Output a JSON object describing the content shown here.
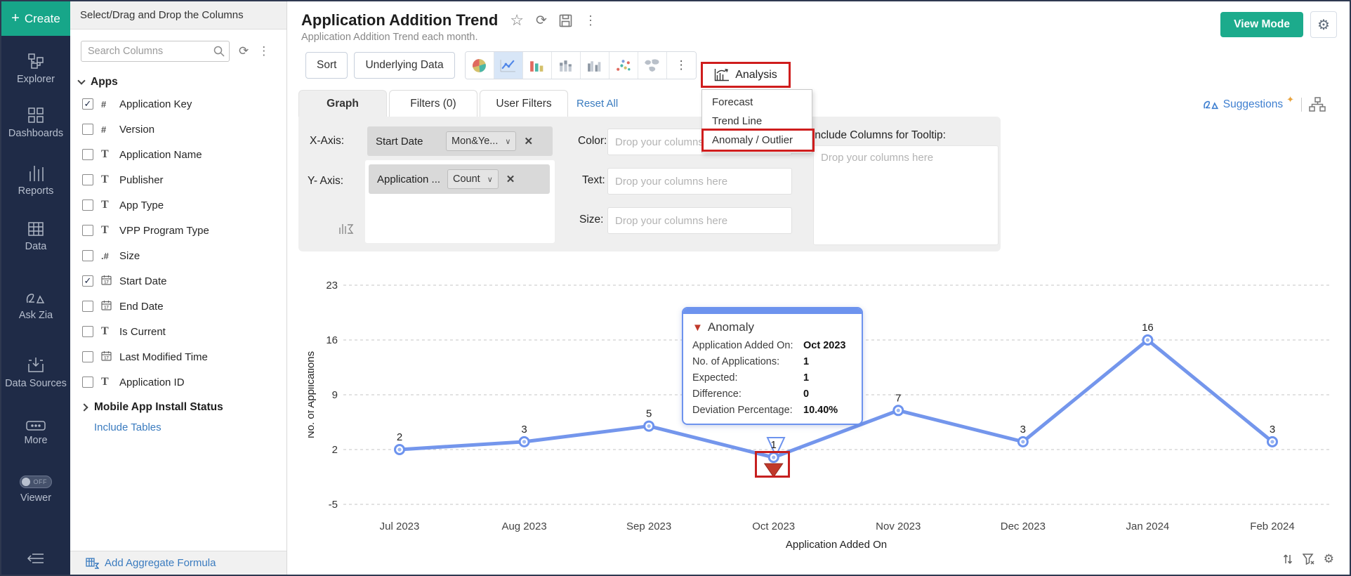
{
  "sidebar": {
    "create_label": "Create",
    "items": [
      {
        "label": "Explorer"
      },
      {
        "label": "Dashboards"
      },
      {
        "label": "Reports"
      },
      {
        "label": "Data"
      },
      {
        "label": "Ask Zia"
      },
      {
        "label": "Data Sources"
      },
      {
        "label": "More"
      },
      {
        "label": "Viewer"
      }
    ],
    "viewer_toggle": "OFF"
  },
  "columns_panel": {
    "header": "Select/Drag and Drop the Columns",
    "search_placeholder": "Search Columns",
    "section_label": "Apps",
    "fields": [
      {
        "type": "number",
        "label": "Application Key",
        "checked": true
      },
      {
        "type": "number",
        "label": "Version",
        "checked": false
      },
      {
        "type": "text",
        "label": "Application Name",
        "checked": false
      },
      {
        "type": "text",
        "label": "Publisher",
        "checked": false
      },
      {
        "type": "text",
        "label": "App Type",
        "checked": false
      },
      {
        "type": "text",
        "label": "VPP Program Type",
        "checked": false
      },
      {
        "type": "decimal",
        "label": "Size",
        "checked": false
      },
      {
        "type": "date",
        "label": "Start Date",
        "checked": true
      },
      {
        "type": "date",
        "label": "End Date",
        "checked": false
      },
      {
        "type": "text",
        "label": "Is Current",
        "checked": false
      },
      {
        "type": "date",
        "label": "Last Modified Time",
        "checked": false
      },
      {
        "type": "text",
        "label": "Application ID",
        "checked": false
      }
    ],
    "expand_item": "Mobile App Install Status",
    "include_tables_label": "Include Tables",
    "add_aggregate_label": "Add Aggregate Formula"
  },
  "report_header": {
    "title": "Application Addition Trend",
    "subtitle": "Application Addition Trend each month."
  },
  "toolbar": {
    "sort_label": "Sort",
    "underlying_data_label": "Underlying Data",
    "analysis_label": "Analysis",
    "chart_icons": [
      "pie-chart-icon",
      "line-chart-icon",
      "bar-chart-icon",
      "stacked-bar-icon",
      "grouped-bar-icon",
      "scatter-plot-icon",
      "map-chart-icon",
      "more-options-icon"
    ],
    "selected_chart": "line-chart-icon"
  },
  "analysis_menu": {
    "items": [
      "Forecast",
      "Trend Line",
      "Anomaly / Outlier"
    ],
    "highlighted": "Anomaly / Outlier"
  },
  "tabs": {
    "items": [
      "Graph",
      "Filters  (0)",
      "User Filters"
    ],
    "active": "Graph",
    "reset_label": "Reset All"
  },
  "config": {
    "x_axis_label": "X-Axis:",
    "x_axis_field": "Start Date",
    "x_axis_fn": "Mon&Ye...",
    "y_axis_label": "Y- Axis:",
    "y_axis_field": "Application ...",
    "y_axis_fn": "Count",
    "color_label": "Color:",
    "text_label": "Text:",
    "size_label": "Size:",
    "drop_placeholder": "Drop your columns here",
    "tooltip_columns_label": "Include Columns for Tooltip:"
  },
  "top_right": {
    "view_mode_label": "View Mode"
  },
  "suggestions_label": "Suggestions",
  "anomaly_tooltip": {
    "title": "Anomaly",
    "rows": [
      {
        "label": "Application Added On:",
        "value": "Oct 2023"
      },
      {
        "label": "No. of Applications:",
        "value": "1"
      },
      {
        "label": "Expected:",
        "value": "1"
      },
      {
        "label": "Difference:",
        "value": "0"
      },
      {
        "label": "Deviation Percentage:",
        "value": "10.40%"
      }
    ]
  },
  "chart_data": {
    "type": "line",
    "categories": [
      "Jul 2023",
      "Aug 2023",
      "Sep 2023",
      "Oct 2023",
      "Nov 2023",
      "Dec 2023",
      "Jan 2024",
      "Feb 2024"
    ],
    "values": [
      2,
      3,
      5,
      1,
      7,
      3,
      16,
      3
    ],
    "xlabel": "Application Added On",
    "ylabel": "No. of Applications",
    "yticks": [
      23,
      16,
      9,
      2,
      -5
    ],
    "ylim": [
      -5,
      23
    ],
    "grid": true,
    "line_color": "#7496ec",
    "marker_color": "#6d93ee",
    "anomaly": {
      "category": "Oct 2023",
      "index": 3,
      "value": 1,
      "expected": 1,
      "difference": 0,
      "deviation_percentage": "10.40%",
      "marker_color": "#c0392b"
    }
  }
}
